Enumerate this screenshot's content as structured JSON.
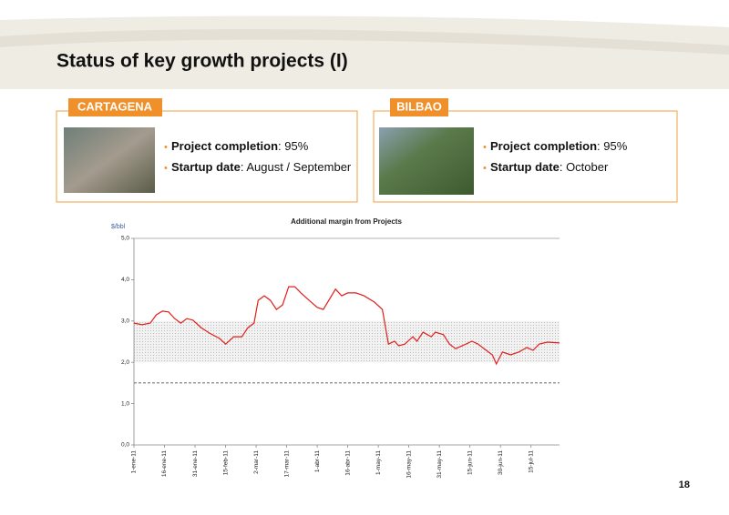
{
  "title": "Status of key growth projects (I)",
  "panels": [
    {
      "name": "CARTAGENA",
      "items": [
        {
          "label": "Project completion",
          "value": ": 95%"
        },
        {
          "label": "Startup date",
          "value": ": August / September"
        }
      ]
    },
    {
      "name": "BILBAO",
      "items": [
        {
          "label": "Project completion",
          "value": ": 95%"
        },
        {
          "label": "Startup date",
          "value": ": October"
        }
      ]
    }
  ],
  "page_number": "18",
  "chart_data": {
    "type": "line",
    "title": "Additional margin from Projects",
    "y_label": "$/bbl",
    "x": [
      "2011-01-01",
      "2011-01-05",
      "2011-01-09",
      "2011-01-12",
      "2011-01-15",
      "2011-01-18",
      "2011-01-21",
      "2011-01-24",
      "2011-01-27",
      "2011-01-30",
      "2011-02-03",
      "2011-02-07",
      "2011-02-12",
      "2011-02-15",
      "2011-02-19",
      "2011-02-23",
      "2011-02-26",
      "2011-03-01",
      "2011-03-03",
      "2011-03-06",
      "2011-03-09",
      "2011-03-12",
      "2011-03-15",
      "2011-03-18",
      "2011-03-21",
      "2011-03-24",
      "2011-03-28",
      "2011-04-01",
      "2011-04-04",
      "2011-04-10",
      "2011-04-13",
      "2011-04-16",
      "2011-04-20",
      "2011-04-24",
      "2011-04-29",
      "2011-05-03",
      "2011-05-06",
      "2011-05-09",
      "2011-05-11",
      "2011-05-14",
      "2011-05-18",
      "2011-05-20",
      "2011-05-23",
      "2011-05-27",
      "2011-05-29",
      "2011-06-02",
      "2011-06-05",
      "2011-06-08",
      "2011-06-13",
      "2011-06-16",
      "2011-06-19",
      "2011-06-23",
      "2011-06-26",
      "2011-06-28",
      "2011-07-01",
      "2011-07-05",
      "2011-07-09",
      "2011-07-13",
      "2011-07-16",
      "2011-07-19",
      "2011-07-23",
      "2011-07-29"
    ],
    "series": [
      {
        "name": "Additional margin",
        "color": "#e0201b",
        "values": [
          2.95,
          2.91,
          2.95,
          3.15,
          3.24,
          3.22,
          3.06,
          2.95,
          3.06,
          3.02,
          2.84,
          2.71,
          2.58,
          2.44,
          2.62,
          2.62,
          2.84,
          2.95,
          3.5,
          3.61,
          3.5,
          3.28,
          3.39,
          3.83,
          3.83,
          3.68,
          3.5,
          3.33,
          3.28,
          3.77,
          3.61,
          3.68,
          3.68,
          3.61,
          3.46,
          3.28,
          2.44,
          2.51,
          2.4,
          2.44,
          2.62,
          2.51,
          2.73,
          2.62,
          2.73,
          2.67,
          2.44,
          2.33,
          2.44,
          2.51,
          2.44,
          2.29,
          2.18,
          1.96,
          2.25,
          2.18,
          2.25,
          2.36,
          2.29,
          2.44,
          2.49,
          2.47
        ]
      }
    ],
    "xlim": [
      "2011-01-01",
      "2011-07-29"
    ],
    "xticks": [
      {
        "value": "2011-01-01",
        "label": "1-ene-11"
      },
      {
        "value": "2011-01-16",
        "label": "16-ene-11"
      },
      {
        "value": "2011-01-31",
        "label": "31-ene-11"
      },
      {
        "value": "2011-02-15",
        "label": "15-feb-11"
      },
      {
        "value": "2011-03-02",
        "label": "2-mar-11"
      },
      {
        "value": "2011-03-17",
        "label": "17-mar-11"
      },
      {
        "value": "2011-04-01",
        "label": "1-abr-11"
      },
      {
        "value": "2011-04-16",
        "label": "16-abr-11"
      },
      {
        "value": "2011-05-01",
        "label": "1-may-11"
      },
      {
        "value": "2011-05-16",
        "label": "16-may-11"
      },
      {
        "value": "2011-05-31",
        "label": "31-may-11"
      },
      {
        "value": "2011-06-15",
        "label": "15-jun-11"
      },
      {
        "value": "2011-06-30",
        "label": "30-jun-11"
      },
      {
        "value": "2011-07-15",
        "label": "15-jul-11"
      }
    ],
    "ylim": [
      0,
      5
    ],
    "yticks": [
      {
        "value": 0,
        "label": "0,0"
      },
      {
        "value": 1,
        "label": "1,0"
      },
      {
        "value": 2,
        "label": "2,0"
      },
      {
        "value": 3,
        "label": "3,0"
      },
      {
        "value": 4,
        "label": "4,0"
      },
      {
        "value": 5,
        "label": "5,0"
      }
    ],
    "band": [
      2,
      3
    ],
    "reference_line": 1.5,
    "grid": false
  }
}
